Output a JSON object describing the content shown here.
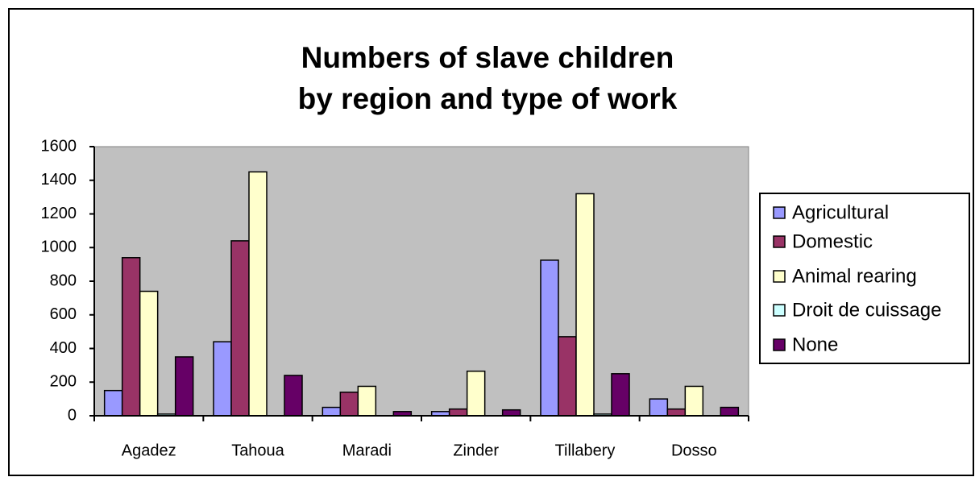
{
  "chart_data": {
    "type": "bar",
    "title": [
      "Numbers of slave children",
      "by region and type of work"
    ],
    "categories": [
      "Agadez",
      "Tahoua",
      "Maradi",
      "Zinder",
      "Tillabery",
      "Dosso"
    ],
    "series": [
      {
        "name": "Agricultural",
        "color": "#9999ff",
        "values": [
          150,
          440,
          50,
          25,
          925,
          100
        ]
      },
      {
        "name": "Domestic",
        "color": "#993366",
        "values": [
          940,
          1040,
          140,
          40,
          470,
          40
        ]
      },
      {
        "name": "Animal rearing",
        "color": "#ffffcc",
        "values": [
          740,
          1450,
          175,
          265,
          1320,
          175
        ]
      },
      {
        "name": "Droit de cuissage",
        "color": "#ccffff",
        "values": [
          10,
          0,
          0,
          0,
          10,
          0
        ]
      },
      {
        "name": "None",
        "color": "#660066",
        "values": [
          350,
          240,
          25,
          35,
          250,
          50
        ]
      }
    ],
    "ylim": [
      0,
      1600
    ],
    "yticks": [
      0,
      200,
      400,
      600,
      800,
      1000,
      1200,
      1400,
      1600
    ],
    "legend": "right",
    "plot_background": "#c0c0c0"
  }
}
